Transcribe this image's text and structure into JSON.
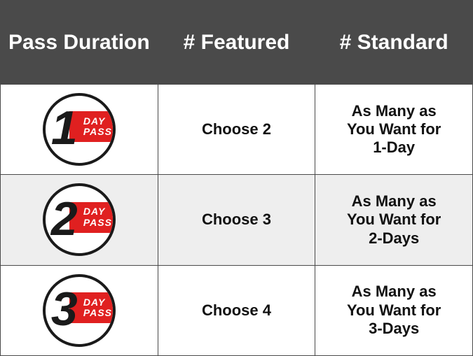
{
  "table": {
    "columns": [
      "Pass Duration",
      "# Featured",
      "# Standard"
    ],
    "rows": [
      {
        "badge": {
          "number": "1",
          "line1": "DAY",
          "line2": "PASS"
        },
        "featured": "Choose 2",
        "standard_l1": "As Many as",
        "standard_l2": "You Want for",
        "standard_l3": "1-Day",
        "alt": false
      },
      {
        "badge": {
          "number": "2",
          "line1": "DAY",
          "line2": "PASS"
        },
        "featured": "Choose 3",
        "standard_l1": "As Many as",
        "standard_l2": "You Want for",
        "standard_l3": "2-Days",
        "alt": true
      },
      {
        "badge": {
          "number": "3",
          "line1": "DAY",
          "line2": "PASS"
        },
        "featured": "Choose 4",
        "standard_l1": "As Many as",
        "standard_l2": "You Want for",
        "standard_l3": "3-Days",
        "alt": false
      }
    ],
    "colors": {
      "header_bg": "#4a4a4a",
      "header_fg": "#ffffff",
      "border": "#4a4a4a",
      "badge_stripe": "#e02020",
      "badge_border": "#1a1a1a",
      "alt_row_bg": "#eeeeee",
      "text": "#111111"
    }
  }
}
